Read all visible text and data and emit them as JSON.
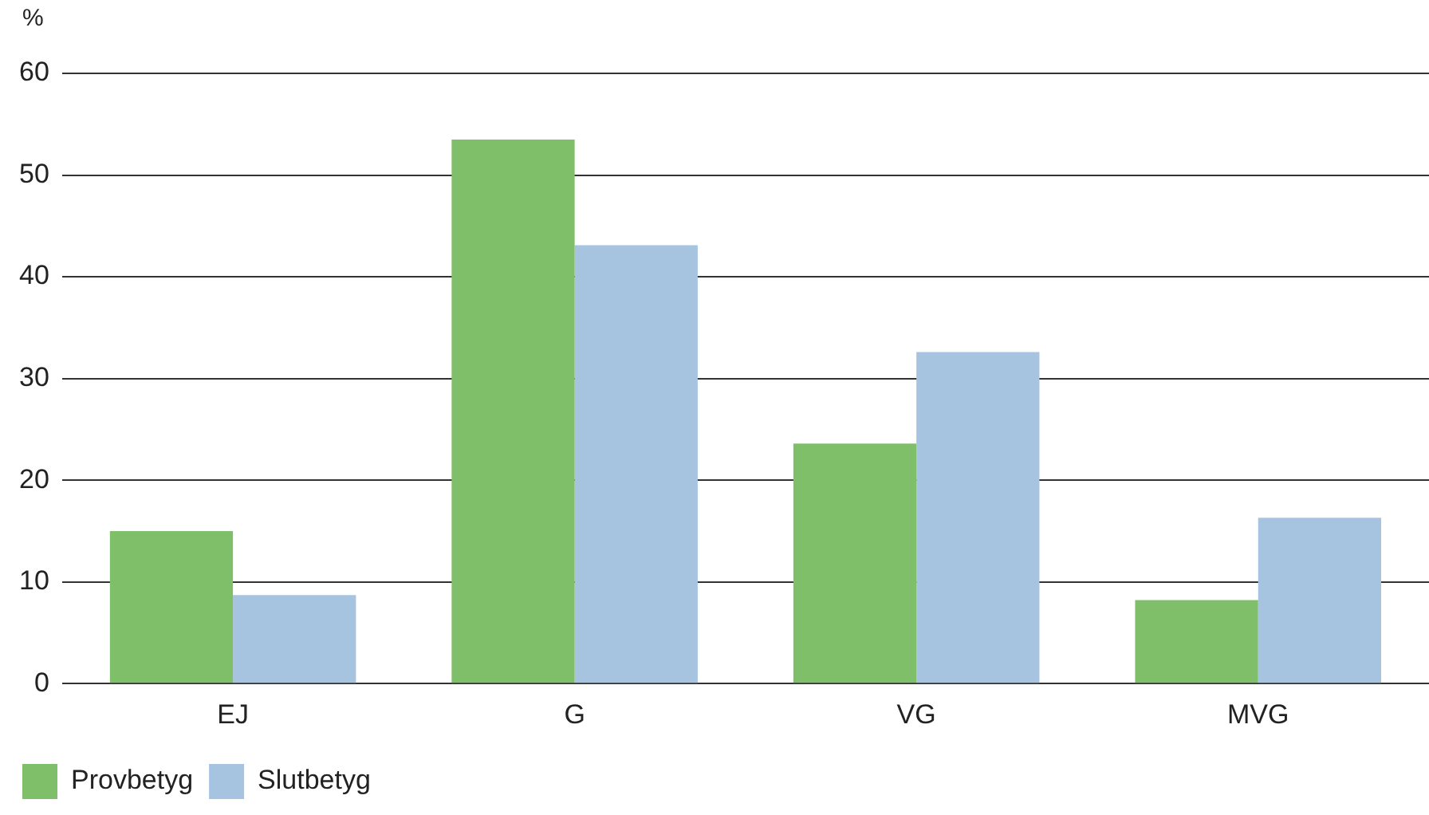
{
  "chart_data": {
    "type": "bar",
    "ylabel": "%",
    "categories": [
      "EJ",
      "G",
      "VG",
      "MVG"
    ],
    "series": [
      {
        "name": "Provbetyg",
        "color": "#7fbf6a",
        "values": [
          15,
          53.5,
          23.6,
          8.2
        ]
      },
      {
        "name": "Slutbetyg",
        "color": "#a6c4e0",
        "values": [
          8.7,
          43.1,
          32.6,
          16.3
        ]
      }
    ],
    "ylim": [
      0,
      60
    ],
    "yticks": [
      0,
      10,
      20,
      30,
      40,
      50,
      60
    ],
    "grid": "y",
    "legend": "bottom left"
  }
}
